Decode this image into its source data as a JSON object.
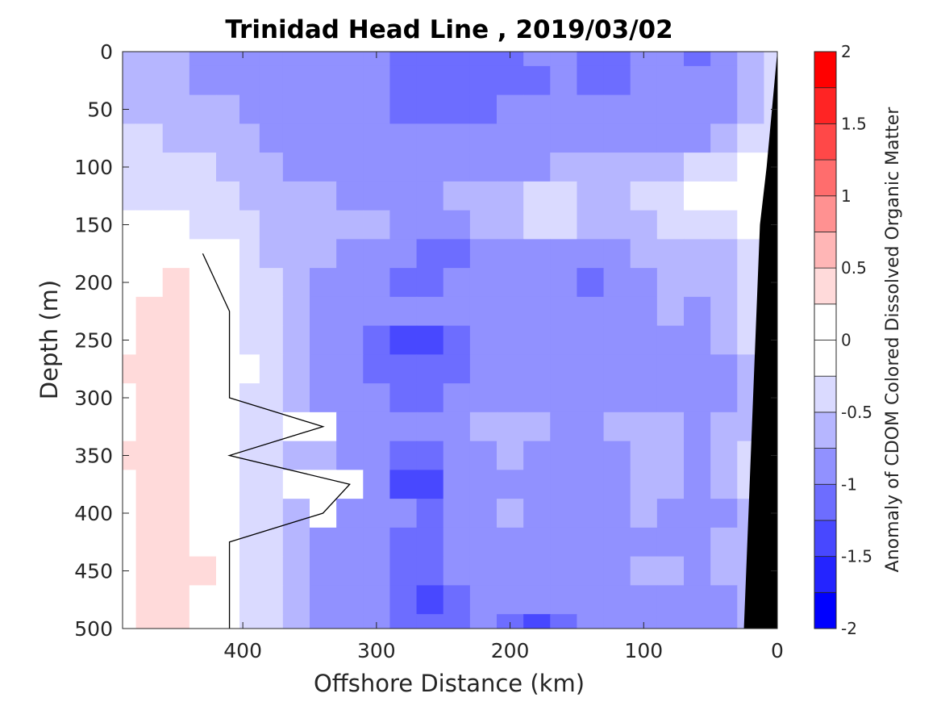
{
  "chart_data": {
    "type": "heatmap",
    "title": "Trinidad Head Line , 2019/03/02",
    "xlabel": "Offshore Distance (km)",
    "ylabel": "Depth (m)",
    "colorbar_label": "Anomaly of CDOM Colored Dissolved Organic Matter",
    "xlim": [
      490,
      0
    ],
    "ylim": [
      0,
      500
    ],
    "x_direction": "reversed",
    "y_direction": "reversed",
    "xticks": [
      400,
      300,
      200,
      100,
      0
    ],
    "yticks": [
      0,
      50,
      100,
      150,
      200,
      250,
      300,
      350,
      400,
      450,
      500
    ],
    "clim": [
      -2,
      2
    ],
    "colorbar_levels": [
      -2,
      -1.75,
      -1.5,
      -1.25,
      -1,
      -0.75,
      -0.5,
      -0.25,
      0,
      0.25,
      0.5,
      0.75,
      1,
      1.25,
      1.5,
      1.75,
      2
    ],
    "colorbar_ticks": [
      -2,
      -1.5,
      -1,
      -0.5,
      0,
      0.5,
      1,
      1.5,
      2
    ],
    "colormap": [
      "#0000ff",
      "#2424ff",
      "#4848ff",
      "#6d6dff",
      "#9191ff",
      "#b6b6ff",
      "#dadaff",
      "#ffffff",
      "#ffffff",
      "#ffdada",
      "#ffb6b6",
      "#ff9191",
      "#ff6d6d",
      "#ff4848",
      "#ff2424",
      "#ff0000"
    ],
    "bathymetry_color": "#000000",
    "contour_level": 0,
    "distance_km": [
      490,
      470,
      450,
      430,
      410,
      395,
      380,
      360,
      340,
      320,
      300,
      280,
      260,
      240,
      220,
      200,
      180,
      160,
      140,
      120,
      100,
      80,
      60,
      40,
      20,
      0
    ],
    "depth_m": [
      0,
      25,
      50,
      75,
      100,
      125,
      150,
      175,
      200,
      225,
      250,
      275,
      300,
      325,
      350,
      375,
      400,
      425,
      450,
      475,
      500
    ],
    "anomaly_rows": [
      [
        -0.6,
        -0.6,
        -0.7,
        -0.8,
        -0.8,
        -0.8,
        -0.9,
        -0.9,
        -0.9,
        -0.9,
        -1.0,
        -1.1,
        -1.1,
        -1.1,
        -1.1,
        -1.1,
        -1.0,
        -1.0,
        -1.1,
        -1.1,
        -1.0,
        -1.0,
        -1.1,
        -0.9,
        -0.6,
        -0.5
      ],
      [
        -0.6,
        -0.6,
        -0.7,
        -0.8,
        -0.8,
        -0.8,
        -0.9,
        -0.9,
        -1.0,
        -1.0,
        -1.0,
        -1.1,
        -1.1,
        -1.2,
        -1.1,
        -1.1,
        -1.1,
        -1.0,
        -1.1,
        -1.1,
        -1.0,
        -1.0,
        -1.0,
        -0.9,
        -0.6,
        -0.5
      ],
      [
        -0.6,
        -0.6,
        -0.6,
        -0.7,
        -0.7,
        -0.8,
        -0.8,
        -0.9,
        -0.9,
        -1.0,
        -1.0,
        -1.1,
        -1.1,
        -1.1,
        -1.1,
        -1.0,
        -1.0,
        -1.0,
        -1.0,
        -1.0,
        -0.9,
        -0.9,
        -0.9,
        -0.8,
        -0.6,
        -0.5
      ],
      [
        -0.5,
        -0.5,
        -0.6,
        -0.6,
        -0.7,
        -0.7,
        -0.8,
        -0.8,
        -0.9,
        -0.9,
        -1.0,
        -1.0,
        -1.0,
        -1.0,
        -1.0,
        -0.9,
        -0.9,
        -0.9,
        -0.9,
        -0.8,
        -0.8,
        -0.8,
        -0.8,
        -0.6,
        -0.5,
        -0.5
      ],
      [
        -0.4,
        -0.4,
        -0.5,
        -0.5,
        -0.6,
        -0.7,
        -0.7,
        -0.8,
        -0.8,
        -0.9,
        -0.9,
        -0.9,
        -0.9,
        -0.9,
        -0.8,
        -0.8,
        -0.8,
        -0.7,
        -0.7,
        -0.7,
        -0.6,
        -0.6,
        -0.5,
        -0.3,
        -0.2,
        -0.2
      ],
      [
        -0.3,
        -0.3,
        -0.4,
        -0.4,
        -0.5,
        -0.6,
        -0.6,
        -0.7,
        -0.7,
        -0.8,
        -0.8,
        -0.8,
        -0.8,
        -0.7,
        -0.7,
        -0.6,
        -0.5,
        -0.5,
        -0.6,
        -0.6,
        -0.5,
        -0.4,
        -0.2,
        -0.1,
        -0.1,
        -0.1
      ],
      [
        -0.2,
        -0.1,
        -0.1,
        -0.3,
        -0.4,
        -0.5,
        -0.6,
        -0.6,
        -0.7,
        -0.7,
        -0.7,
        -0.8,
        -0.8,
        -0.8,
        -0.7,
        -0.6,
        -0.5,
        -0.5,
        -0.6,
        -0.6,
        -0.6,
        -0.5,
        -0.4,
        -0.3,
        -0.2,
        -0.1
      ],
      [
        -0.1,
        0.1,
        0.1,
        0.0,
        -0.2,
        -0.4,
        -0.6,
        -0.7,
        -0.7,
        -0.8,
        -0.8,
        -1.0,
        -1.1,
        -1.2,
        -0.9,
        -0.8,
        -0.8,
        -0.8,
        -0.8,
        -0.8,
        -0.7,
        -0.6,
        -0.7,
        -0.6,
        -0.4,
        -0.3
      ],
      [
        0.0,
        0.2,
        0.3,
        0.1,
        -0.1,
        -0.3,
        -0.5,
        -0.7,
        -0.8,
        -0.9,
        -1.0,
        -1.1,
        -1.1,
        -1.0,
        -1.0,
        -0.9,
        -0.8,
        -0.9,
        -1.2,
        -0.9,
        -0.8,
        -0.7,
        -0.7,
        -0.6,
        -0.4,
        -0.3
      ],
      [
        0.2,
        0.3,
        0.3,
        0.2,
        0.0,
        -0.3,
        -0.5,
        -0.7,
        -0.8,
        -0.9,
        -0.9,
        -1.0,
        -1.0,
        -0.9,
        -0.8,
        -0.8,
        -0.8,
        -0.9,
        -1.0,
        -0.9,
        -0.8,
        -0.7,
        -0.8,
        -0.7,
        -0.5,
        -0.3
      ],
      [
        0.2,
        0.3,
        0.3,
        0.2,
        0.0,
        -0.3,
        -0.5,
        -0.7,
        -0.9,
        -1.0,
        -1.1,
        -1.3,
        -1.3,
        -1.1,
        -1.0,
        -0.9,
        -0.9,
        -0.8,
        -0.9,
        -1.0,
        -0.9,
        -0.9,
        -0.8,
        -0.7,
        -0.5,
        -0.3
      ],
      [
        0.3,
        0.3,
        0.4,
        0.2,
        0.0,
        -0.2,
        -0.5,
        -0.7,
        -0.9,
        -1.0,
        -1.1,
        -1.2,
        -1.2,
        -1.1,
        -1.0,
        -0.9,
        -0.9,
        -1.0,
        -1.0,
        -0.9,
        -0.8,
        -1.0,
        -1.0,
        -0.9,
        -0.6,
        -0.4
      ],
      [
        0.2,
        0.3,
        0.3,
        0.2,
        0.0,
        -0.3,
        -0.5,
        -0.7,
        -0.8,
        -0.9,
        -1.0,
        -1.1,
        -1.2,
        -1.0,
        -0.9,
        -0.8,
        -0.9,
        -0.9,
        -1.0,
        -0.9,
        -0.8,
        -0.8,
        -0.9,
        -0.8,
        -0.6,
        -0.4
      ],
      [
        0.2,
        0.3,
        0.3,
        0.2,
        0.0,
        -0.3,
        -0.5,
        0.0,
        0.0,
        -0.8,
        -0.9,
        -1.0,
        -1.0,
        -0.9,
        -0.7,
        -0.6,
        -0.7,
        -0.8,
        -0.8,
        -0.7,
        -0.6,
        -0.7,
        -0.8,
        -0.7,
        -0.6,
        -0.4
      ],
      [
        0.3,
        0.3,
        0.3,
        0.2,
        0.0,
        -0.3,
        -0.5,
        -0.6,
        -0.7,
        -0.9,
        -1.0,
        -1.1,
        -1.1,
        -0.9,
        -0.8,
        -0.7,
        -0.8,
        -0.9,
        -0.9,
        -0.8,
        -0.7,
        -0.7,
        -0.8,
        -0.7,
        -0.5,
        -0.4
      ],
      [
        0.2,
        0.3,
        0.3,
        0.2,
        0.0,
        -0.3,
        -0.5,
        0.0,
        0.0,
        0.0,
        -1.0,
        -1.3,
        -1.3,
        -1.0,
        -0.9,
        -0.8,
        -0.8,
        -0.8,
        -0.9,
        -0.8,
        -0.7,
        -0.7,
        -0.8,
        -0.7,
        -0.5,
        -0.4
      ],
      [
        0.2,
        0.3,
        0.3,
        0.2,
        0.0,
        -0.4,
        -0.5,
        -0.7,
        0.0,
        -0.8,
        -0.9,
        -1.0,
        -1.1,
        -0.9,
        -0.8,
        -0.7,
        -0.8,
        -0.8,
        -0.9,
        -0.8,
        -0.7,
        -0.8,
        -0.9,
        -0.8,
        -0.6,
        -0.4
      ],
      [
        0.2,
        0.3,
        0.3,
        0.2,
        0.0,
        -0.3,
        -0.5,
        -0.7,
        -0.8,
        -0.9,
        -1.0,
        -1.1,
        -1.1,
        -1.0,
        -0.9,
        -0.8,
        -0.9,
        -1.0,
        -0.9,
        -0.8,
        -0.8,
        -0.9,
        -0.8,
        -0.7,
        -0.6,
        -0.4
      ],
      [
        0.2,
        0.3,
        0.4,
        0.3,
        0.0,
        -0.3,
        -0.5,
        -0.6,
        -0.8,
        -0.9,
        -1.0,
        -1.1,
        -1.1,
        -1.0,
        -0.9,
        -0.8,
        -0.9,
        -0.9,
        -1.0,
        -0.9,
        -0.7,
        -0.7,
        -0.8,
        -0.7,
        -0.6,
        -0.4
      ],
      [
        0.2,
        0.3,
        0.3,
        0.2,
        0.0,
        -0.3,
        -0.5,
        -0.7,
        -0.8,
        -0.9,
        -1.0,
        -1.2,
        -1.3,
        -1.1,
        -0.9,
        -0.8,
        -0.9,
        -0.9,
        -1.0,
        -0.9,
        -0.8,
        -0.8,
        -0.9,
        -0.8,
        -0.6,
        -0.4
      ],
      [
        0.2,
        0.3,
        0.3,
        0.2,
        0.0,
        -0.3,
        -0.5,
        -0.7,
        -0.8,
        -0.9,
        -1.0,
        -1.1,
        -1.2,
        -1.1,
        -1.0,
        -1.2,
        -1.3,
        -1.2,
        -1.0,
        -0.9,
        -0.8,
        -0.9,
        -1.0,
        -0.8,
        -0.6,
        -0.4
      ]
    ],
    "seafloor_depth_m": [
      {
        "x": 0,
        "depth": 0
      },
      {
        "x": 8,
        "depth": 100
      },
      {
        "x": 13,
        "depth": 150
      },
      {
        "x": 25,
        "depth": 500
      }
    ]
  }
}
